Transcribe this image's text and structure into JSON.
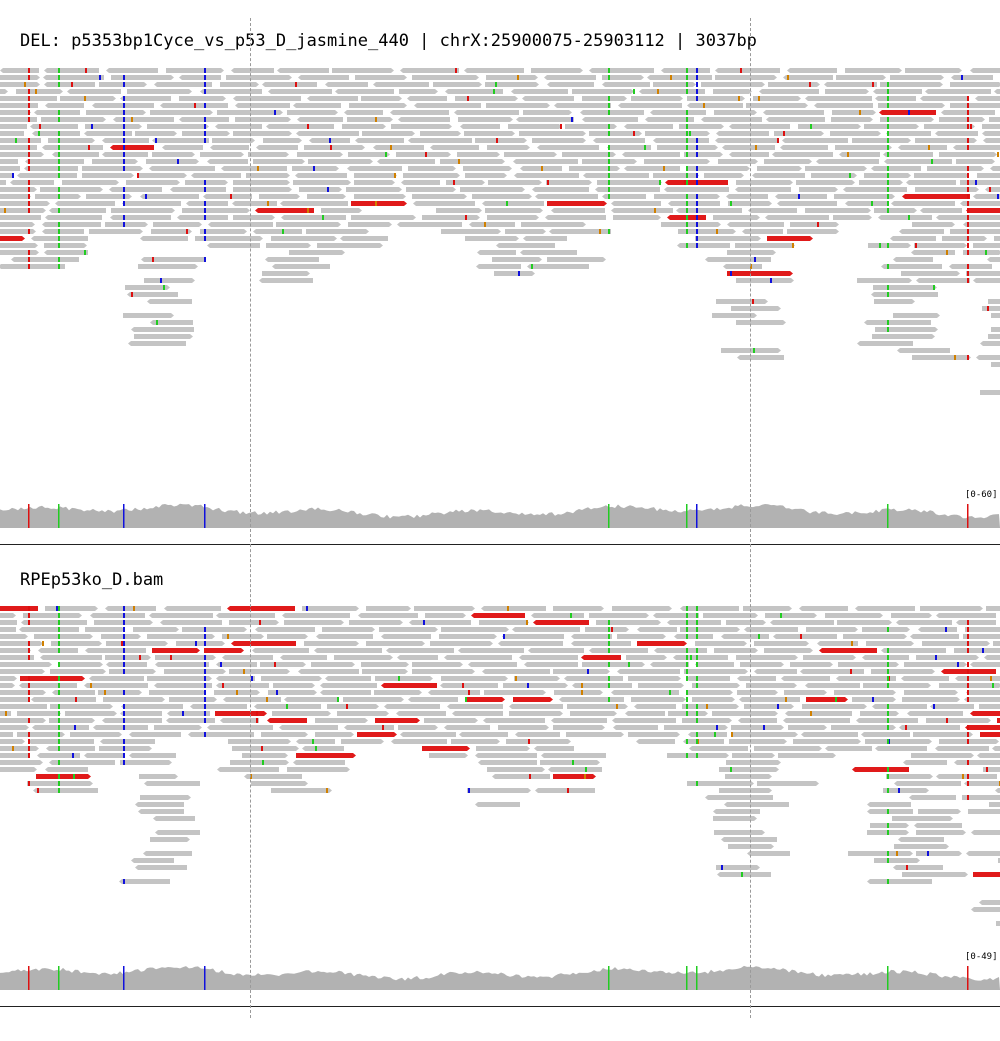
{
  "panels": [
    {
      "title": "DEL: p5353bp1Cyce_vs_p53_D_jasmine_440 | chrX:25900075-25903112 | 3037bp",
      "coverage_range": "[0-60]",
      "pileup": {
        "rows": 36,
        "deep_rows": 42
      }
    },
    {
      "title": "RPEp53ko_D.bam",
      "coverage_range": "[0-49]",
      "pileup": {
        "rows": 34,
        "deep_rows": 40
      }
    }
  ],
  "colors": {
    "read": "#c4c4c4",
    "discordant_read": "#e01a1a",
    "coverage": "#b2b2b2",
    "mismatch_A": "#22cc22",
    "mismatch_C": "#1010dd",
    "mismatch_G": "#d08000",
    "mismatch_T": "#dd1010",
    "insertion": "#8a2be2"
  },
  "icons": {
    "read_strand_forward": "arrow-right-shape",
    "read_strand_reverse": "arrow-left-shape"
  }
}
